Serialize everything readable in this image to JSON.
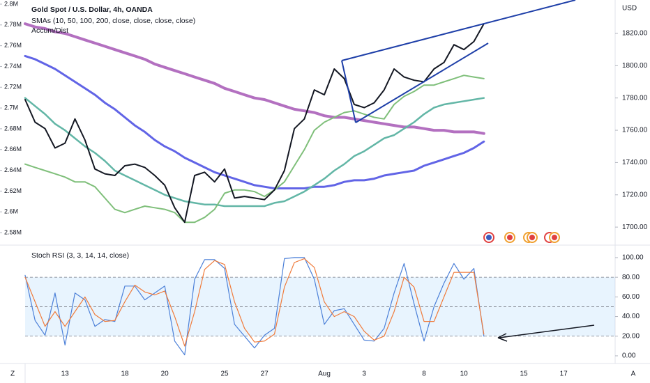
{
  "chart_data": [
    {
      "type": "line",
      "title": "Gold Spot / U.S. Dollar, 4h, OANDA",
      "subtitle": "SMAs (10, 50, 100, 200, close, close, close, close)",
      "indicator": "Accum/Dist",
      "y_label": "USD",
      "categories": [
        null,
        null,
        null,
        null,
        "13",
        null,
        null,
        null,
        null,
        null,
        "18",
        null,
        null,
        null,
        "20",
        null,
        null,
        null,
        null,
        null,
        "25",
        null,
        null,
        null,
        "27",
        null,
        null,
        null,
        null,
        null,
        "Aug",
        null,
        null,
        null,
        "3",
        null,
        null,
        null,
        null,
        null,
        "8",
        null,
        null,
        null,
        "10",
        null,
        null,
        null,
        null,
        null,
        "15",
        null,
        null,
        null,
        "17",
        null,
        null,
        null,
        null,
        null
      ],
      "ylim": [
        1689.7,
        1840.7
      ],
      "yticks": [
        {
          "value": 1700,
          "label": "1700.00"
        },
        {
          "value": 1720,
          "label": "1720.00"
        },
        {
          "value": 1740,
          "label": "1740.00"
        },
        {
          "value": 1760,
          "label": "1760.00"
        },
        {
          "value": 1780,
          "label": "1780.00"
        },
        {
          "value": 1800,
          "label": "1800.00"
        },
        {
          "value": 1820,
          "label": "1820.00"
        }
      ],
      "y2lim": [
        2569300,
        2804000
      ],
      "y2ticks": [
        {
          "value": 2580000,
          "label": "2.58M"
        },
        {
          "value": 2600000,
          "label": "2.6M"
        },
        {
          "value": 2620000,
          "label": "2.62M"
        },
        {
          "value": 2640000,
          "label": "2.64M"
        },
        {
          "value": 2660000,
          "label": "2.66M"
        },
        {
          "value": 2680000,
          "label": "2.68M"
        },
        {
          "value": 2700000,
          "label": "2.7M"
        },
        {
          "value": 2720000,
          "label": "2.72M"
        },
        {
          "value": 2740000,
          "label": "2.74M"
        },
        {
          "value": 2760000,
          "label": "2.76M"
        },
        {
          "value": 2780000,
          "label": "2.78M"
        },
        {
          "value": 2800000,
          "label": "2.8M"
        }
      ],
      "series": [
        {
          "color": "#b370c0",
          "width": 4,
          "values": [
            1826,
            1824,
            1823,
            1821,
            1820,
            1818,
            1816,
            1814,
            1812,
            1810,
            1808,
            1806,
            1804,
            1801,
            1799,
            1797,
            1795,
            1793,
            1791,
            1789,
            1786,
            1784,
            1782,
            1780,
            1779,
            1777,
            1775,
            1773,
            1772,
            1771,
            1769,
            1768,
            1768,
            1767,
            1766,
            1765,
            1764,
            1763,
            1762,
            1762,
            1761,
            1760,
            1760,
            1759,
            1759,
            1759,
            1758,
            null,
            null,
            null,
            null,
            null,
            null,
            null,
            null,
            null,
            null,
            null,
            null,
            null
          ]
        },
        {
          "color": "#6164e6",
          "width": 3,
          "values": [
            1806,
            1804,
            1801,
            1798,
            1794,
            1790,
            1786,
            1782,
            1777,
            1773,
            1768,
            1763,
            1759,
            1754,
            1750,
            1747,
            1743,
            1740,
            1737,
            1734,
            1732,
            1730,
            1728,
            1726,
            1725,
            1724,
            1724,
            1724,
            1724,
            1725,
            1725,
            1726,
            1728,
            1729,
            1729,
            1730,
            1732,
            1733,
            1734,
            1735,
            1738,
            1740,
            1742,
            1744,
            1746,
            1749,
            1753,
            null,
            null,
            null,
            null,
            null,
            null,
            null,
            null,
            null,
            null,
            null,
            null,
            null
          ]
        },
        {
          "color": "#62b6a6",
          "width": 2.5,
          "values": [
            1780,
            1775,
            1770,
            1764,
            1760,
            1755,
            1750,
            1746,
            1741,
            1735,
            1732,
            1729,
            1726,
            1723,
            1720,
            1718,
            1716,
            1715,
            1714,
            1714,
            1713,
            1713,
            1713,
            1713,
            1713,
            1715,
            1716,
            1719,
            1722,
            1726,
            1730,
            1735,
            1739,
            1744,
            1747,
            1751,
            1755,
            1757,
            1761,
            1765,
            1770,
            1774,
            1776,
            1777,
            1778,
            1779,
            1780,
            null,
            null,
            null,
            null,
            null,
            null,
            null,
            null,
            null,
            null,
            null,
            null,
            null
          ]
        },
        {
          "color": "#7fbf7a",
          "width": 2,
          "values": [
            1739,
            1737,
            1735,
            1733,
            1731,
            1728,
            1728,
            1725,
            1718,
            1711,
            1709,
            1711,
            1713,
            1712,
            1711,
            1709,
            1703,
            1703,
            1706,
            1711,
            1721,
            1723,
            1723,
            1722,
            1719,
            1723,
            1728,
            1738,
            1748,
            1760,
            1765,
            1768,
            1771,
            1772,
            1770,
            1768,
            1767,
            1776,
            1781,
            1784,
            1788,
            1788,
            1790,
            1792,
            1794,
            1793,
            1792,
            null,
            null,
            null,
            null,
            null,
            null,
            null,
            null,
            null,
            null,
            null,
            null,
            null
          ]
        },
        {
          "color": "#131722",
          "width": 2,
          "values": [
            1779,
            1765,
            1761,
            1749,
            1752,
            1767,
            1754,
            1736,
            1733,
            1732,
            1738,
            1739,
            1737,
            1732,
            1726,
            1712,
            1703,
            1732,
            1734,
            1728,
            1736,
            1718,
            1719,
            1718,
            1717,
            1723,
            1735,
            1761,
            1767,
            1785,
            1782,
            1798,
            1792,
            1776,
            1774,
            1777,
            1785,
            1798,
            1793,
            1791,
            1790,
            1798,
            1802,
            1813,
            1810,
            1815,
            1826,
            null,
            null,
            null,
            null,
            null,
            null,
            null,
            null,
            null,
            null,
            null,
            null,
            null
          ]
        }
      ]
    },
    {
      "type": "line",
      "title": "Stoch RSI (3, 3, 14, 14, close)",
      "ylim": [
        -6.4,
        110.6
      ],
      "yticks": [
        {
          "value": 0,
          "label": "0.00"
        },
        {
          "value": 20,
          "label": "20.00"
        },
        {
          "value": 40,
          "label": "40.00"
        },
        {
          "value": 60,
          "label": "60.00"
        },
        {
          "value": 80,
          "label": "80.00"
        },
        {
          "value": 100,
          "label": "100.00"
        }
      ],
      "band": [
        20,
        80
      ],
      "hlines": [
        80,
        50,
        20
      ],
      "series": [
        {
          "color": "#4c80d8",
          "width": 1.2,
          "values": [
            82,
            36,
            21,
            64,
            11,
            64,
            57,
            30,
            37,
            35,
            71,
            71,
            57,
            64,
            71,
            15,
            1,
            78,
            98,
            98,
            89,
            32,
            20,
            8,
            21,
            28,
            99,
            100,
            100,
            78,
            32,
            46,
            48,
            32,
            16,
            15,
            28,
            64,
            94,
            53,
            15,
            50,
            74,
            94,
            78,
            89,
            20,
            null,
            null,
            null,
            null,
            null,
            null,
            null,
            null,
            null,
            null,
            null,
            null,
            null
          ]
        },
        {
          "color": "#f07b3b",
          "width": 1.2,
          "values": [
            80,
            55,
            30,
            45,
            30,
            45,
            60,
            42,
            35,
            36,
            55,
            72,
            65,
            62,
            66,
            40,
            10,
            45,
            88,
            97,
            93,
            55,
            28,
            14,
            15,
            22,
            70,
            95,
            99,
            90,
            55,
            40,
            45,
            40,
            25,
            16,
            20,
            45,
            80,
            70,
            35,
            35,
            60,
            85,
            85,
            85,
            22,
            null,
            null,
            null,
            null,
            null,
            null,
            null,
            null,
            null,
            null,
            null,
            null,
            null
          ]
        }
      ]
    }
  ],
  "axis_buttons": [
    "Z",
    "A"
  ]
}
